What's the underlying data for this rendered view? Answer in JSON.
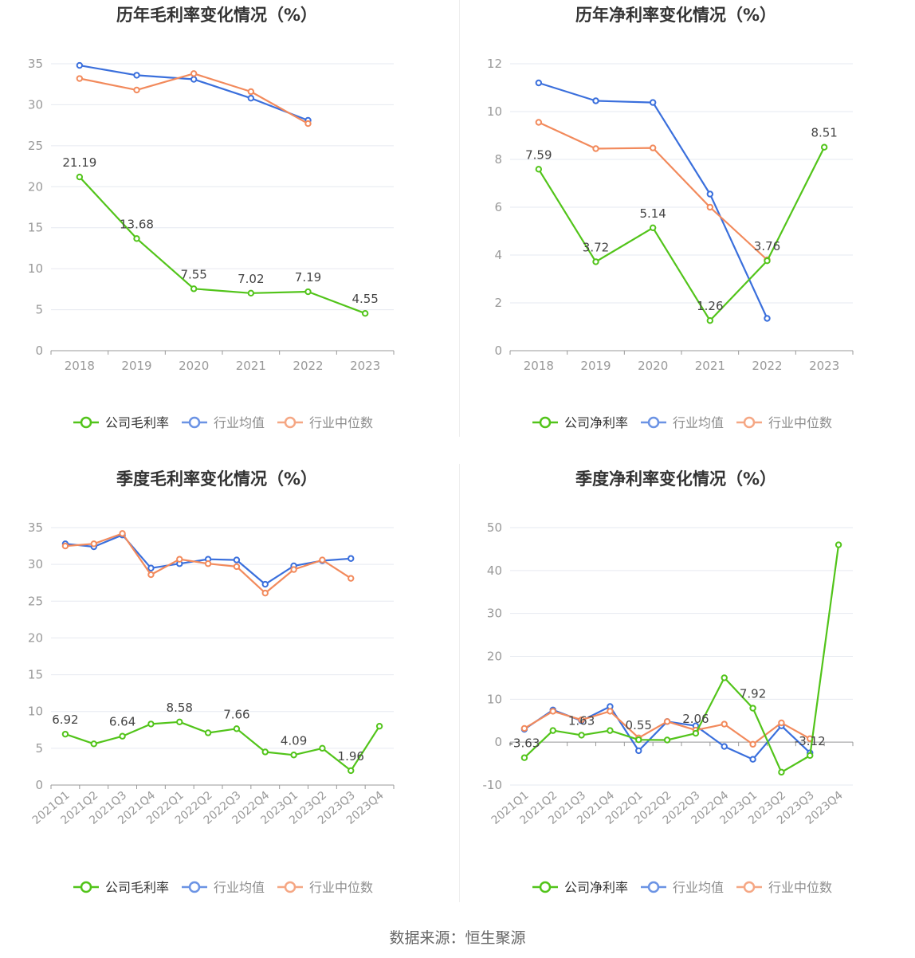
{
  "source": "数据来源：恒生聚源",
  "colors": {
    "company": "#52c41a",
    "avg": "#3a6fdc",
    "median": "#f28a5c",
    "grid": "#e6e9f0",
    "axis": "#999999",
    "label": "#444444",
    "title": "#333333"
  },
  "chart_data": [
    {
      "type": "line",
      "title": "历年毛利率变化情况（%）",
      "categories": [
        "2018",
        "2019",
        "2020",
        "2021",
        "2022",
        "2023"
      ],
      "ylim": [
        0,
        35
      ],
      "yticks": [
        0,
        5,
        10,
        15,
        20,
        25,
        30,
        35
      ],
      "grid": true,
      "legend_position": "bottom",
      "series": [
        {
          "name": "公司毛利率",
          "role": "company",
          "values": [
            21.19,
            13.68,
            7.55,
            7.02,
            7.19,
            4.55
          ],
          "labels": [
            true,
            true,
            true,
            true,
            true,
            true
          ]
        },
        {
          "name": "行业均值",
          "role": "avg",
          "values": [
            34.8,
            33.6,
            33.1,
            30.8,
            28.1,
            null
          ]
        },
        {
          "name": "行业中位数",
          "role": "median",
          "values": [
            33.2,
            31.8,
            33.8,
            31.6,
            27.7,
            null
          ]
        }
      ]
    },
    {
      "type": "line",
      "title": "历年净利率变化情况（%）",
      "categories": [
        "2018",
        "2019",
        "2020",
        "2021",
        "2022",
        "2023"
      ],
      "ylim": [
        0,
        12
      ],
      "yticks": [
        0,
        2,
        4,
        6,
        8,
        10,
        12
      ],
      "grid": true,
      "legend_position": "bottom",
      "series": [
        {
          "name": "公司净利率",
          "role": "company",
          "values": [
            7.59,
            3.72,
            5.14,
            1.26,
            3.76,
            8.51
          ],
          "labels": [
            true,
            true,
            true,
            true,
            true,
            true
          ]
        },
        {
          "name": "行业均值",
          "role": "avg",
          "values": [
            11.2,
            10.45,
            10.38,
            6.55,
            1.35,
            null
          ]
        },
        {
          "name": "行业中位数",
          "role": "median",
          "values": [
            9.55,
            8.45,
            8.48,
            6.0,
            3.8,
            null
          ]
        }
      ]
    },
    {
      "type": "line",
      "title": "季度毛利率变化情况（%）",
      "categories": [
        "2021Q1",
        "2021Q2",
        "2021Q3",
        "2021Q4",
        "2022Q1",
        "2022Q2",
        "2022Q3",
        "2022Q4",
        "2023Q1",
        "2023Q2",
        "2023Q3",
        "2023Q4"
      ],
      "ylim": [
        0,
        35
      ],
      "yticks": [
        0,
        5,
        10,
        15,
        20,
        25,
        30,
        35
      ],
      "grid": true,
      "legend_position": "bottom",
      "rotate_x_labels": true,
      "series": [
        {
          "name": "公司毛利率",
          "role": "company",
          "values": [
            6.92,
            5.6,
            6.64,
            8.3,
            8.58,
            7.1,
            7.66,
            4.5,
            4.09,
            5.0,
            1.96,
            8.0
          ],
          "labels": [
            true,
            false,
            true,
            false,
            true,
            false,
            true,
            false,
            true,
            false,
            true,
            false
          ]
        },
        {
          "name": "行业均值",
          "role": "avg",
          "values": [
            32.8,
            32.4,
            34.0,
            29.5,
            30.1,
            30.7,
            30.6,
            27.3,
            29.8,
            30.5,
            30.8,
            null
          ]
        },
        {
          "name": "行业中位数",
          "role": "median",
          "values": [
            32.5,
            32.8,
            34.2,
            28.6,
            30.7,
            30.1,
            29.7,
            26.1,
            29.3,
            30.6,
            28.1,
            null
          ]
        }
      ]
    },
    {
      "type": "line",
      "title": "季度净利率变化情况（%）",
      "categories": [
        "2021Q1",
        "2021Q2",
        "2021Q3",
        "2021Q4",
        "2022Q1",
        "2022Q2",
        "2022Q3",
        "2022Q4",
        "2023Q1",
        "2023Q2",
        "2023Q3",
        "2023Q4"
      ],
      "ylim": [
        -10,
        50
      ],
      "yticks": [
        -10,
        0,
        10,
        20,
        30,
        40,
        50
      ],
      "grid": true,
      "legend_position": "bottom",
      "rotate_x_labels": true,
      "series": [
        {
          "name": "公司净利率",
          "role": "company",
          "values": [
            -3.63,
            2.7,
            1.63,
            2.7,
            0.55,
            0.5,
            2.06,
            15.0,
            7.92,
            -7.0,
            -3.12,
            46.0
          ],
          "labels": [
            true,
            false,
            true,
            false,
            true,
            false,
            true,
            false,
            true,
            false,
            true,
            false
          ]
        },
        {
          "name": "行业均值",
          "role": "avg",
          "values": [
            3.0,
            7.5,
            5.0,
            8.3,
            -2.0,
            4.8,
            3.8,
            -1.0,
            -4.0,
            3.8,
            -2.5,
            null
          ]
        },
        {
          "name": "行业中位数",
          "role": "median",
          "values": [
            3.2,
            7.2,
            5.2,
            7.2,
            1.0,
            4.8,
            2.8,
            4.2,
            -0.5,
            4.5,
            0.8,
            null
          ]
        }
      ]
    }
  ]
}
